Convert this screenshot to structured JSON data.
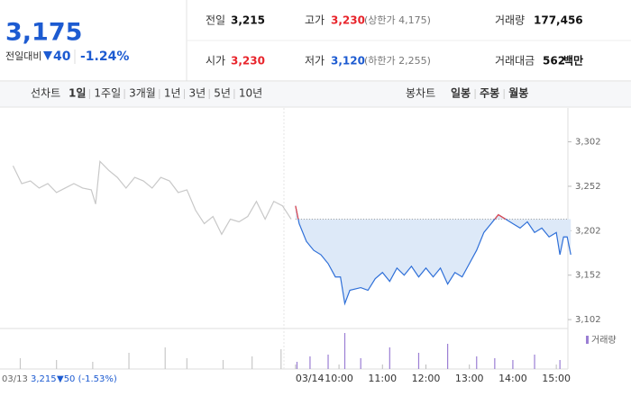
{
  "quote": {
    "price": "3,175",
    "change_label": "전일대비",
    "change": "40",
    "change_pct": "-1.24%"
  },
  "stats": [
    {
      "label": "전일",
      "value": "3,215"
    },
    {
      "label": "고가",
      "value": "3,230",
      "note": "(상한가 4,175)"
    },
    {
      "label": "거래량",
      "value": "177,456"
    },
    {
      "label": "시가",
      "value": "3,230"
    },
    {
      "label": "저가",
      "value": "3,120",
      "note": "(하한가 2,255)"
    },
    {
      "label": "거래대금",
      "value": "562",
      "unit": "백만"
    }
  ],
  "tabs": {
    "line_label": "선차트",
    "line_tabs": [
      "1일",
      "1주일",
      "3개월",
      "1년",
      "3년",
      "5년",
      "10년"
    ],
    "candle_label": "봉차트",
    "candle_tabs": [
      "일봉",
      "주봉",
      "월봉"
    ]
  },
  "prev_info": {
    "date": "03/13",
    "close": "3,215",
    "change": "▼50 (-1.53%)"
  },
  "chart_data": [
    {
      "type": "line",
      "xlim": [
        -408,
        376
      ],
      "ylim": [
        3092,
        3335
      ],
      "yticks": [
        {
          "value": 3302,
          "label": "3,302"
        },
        {
          "value": 3252,
          "label": "3,252"
        },
        {
          "value": 3202,
          "label": "3,202"
        },
        {
          "value": 3152,
          "label": "3,152"
        },
        {
          "value": 3102,
          "label": "3,102"
        }
      ],
      "xticks": [
        {
          "value": 0,
          "label": "03/14"
        },
        {
          "value": 60,
          "label": "10:00"
        },
        {
          "value": 120,
          "label": "11:00"
        },
        {
          "value": 180,
          "label": "12:00"
        },
        {
          "value": 240,
          "label": "13:00"
        },
        {
          "value": 300,
          "label": "14:00"
        },
        {
          "value": 360,
          "label": "15:00"
        }
      ],
      "baseline": 3215,
      "up_color": "#e8474a",
      "fill_color": "#dde9f8",
      "series": [
        {
          "color": "#c8c8c8",
          "x": [
            -390,
            -378,
            -366,
            -354,
            -342,
            -330,
            -318,
            -306,
            -294,
            -282,
            -276,
            -270,
            -258,
            -246,
            -234,
            -222,
            -210,
            -198,
            -186,
            -174,
            -162,
            -150,
            -138,
            -126,
            -114,
            -102,
            -90,
            -78,
            -66,
            -54,
            -42,
            -30,
            -18,
            -6
          ],
          "values": [
            3275,
            3255,
            3258,
            3250,
            3255,
            3245,
            3250,
            3255,
            3250,
            3248,
            3232,
            3280,
            3270,
            3262,
            3250,
            3262,
            3258,
            3250,
            3262,
            3258,
            3245,
            3248,
            3225,
            3210,
            3218,
            3198,
            3215,
            3212,
            3218,
            3235,
            3215,
            3235,
            3230,
            3215
          ]
        },
        {
          "color": "#2e6fd8",
          "x": [
            0,
            5,
            15,
            25,
            35,
            45,
            55,
            62,
            68,
            75,
            90,
            100,
            110,
            120,
            130,
            140,
            150,
            160,
            170,
            180,
            190,
            200,
            210,
            220,
            230,
            240,
            250,
            260,
            270,
            280,
            290,
            300,
            310,
            320,
            330,
            340,
            350,
            360,
            365,
            370,
            375,
            380
          ],
          "values": [
            3230,
            3210,
            3190,
            3180,
            3175,
            3165,
            3150,
            3150,
            3120,
            3135,
            3138,
            3135,
            3148,
            3155,
            3145,
            3160,
            3152,
            3162,
            3150,
            3160,
            3150,
            3160,
            3142,
            3155,
            3150,
            3165,
            3180,
            3200,
            3210,
            3220,
            3215,
            3210,
            3205,
            3212,
            3200,
            3205,
            3195,
            3200,
            3175,
            3195,
            3195,
            3175
          ]
        }
      ]
    },
    {
      "type": "bar",
      "legend": "거래량",
      "color": "#9b7fd4",
      "prev_color": "#c8c8c8",
      "xlim": [
        -408,
        376
      ],
      "ylim": [
        0,
        100
      ],
      "x": [
        -380,
        -330,
        -280,
        -230,
        -180,
        -150,
        -100,
        -60,
        -20,
        2,
        20,
        45,
        68,
        90,
        130,
        170,
        210,
        250,
        275,
        300,
        330,
        365
      ],
      "values": [
        30,
        25,
        20,
        45,
        60,
        30,
        25,
        35,
        55,
        20,
        35,
        40,
        100,
        30,
        60,
        45,
        70,
        35,
        30,
        25,
        40,
        25
      ]
    }
  ]
}
